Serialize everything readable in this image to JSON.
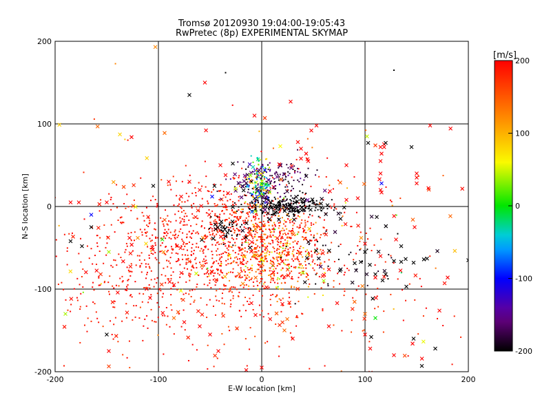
{
  "chart_data": {
    "type": "scatter",
    "title": "Tromsø 20120930 19:04:00-19:05:43",
    "subtitle": "RwPretec (8p) EXPERIMENTAL SKYMAP",
    "xlabel": "E-W location [km]",
    "ylabel": "N-S location [km]",
    "xlim": [
      -200,
      200
    ],
    "ylim": [
      -200,
      200
    ],
    "xticks": [
      -200,
      -100,
      0,
      100,
      200
    ],
    "yticks": [
      -200,
      -100,
      0,
      100,
      200
    ],
    "grid": true,
    "colorbar": {
      "label": "[m/s]",
      "min": -200,
      "max": 200,
      "ticks": [
        200,
        100,
        0,
        -100,
        -200
      ],
      "colormap": "rainbow (black - blue - cyan - green - yellow - red)"
    },
    "clusters": [
      {
        "x": -35,
        "y": -40,
        "sx": 55,
        "sy": 35,
        "v": 190,
        "vs": 12,
        "n": 950,
        "cross": 0.04
      },
      {
        "x": 10,
        "y": -55,
        "sx": 22,
        "sy": 28,
        "v": 150,
        "vs": 60,
        "n": 420,
        "cross": 0.05
      },
      {
        "x": -140,
        "y": -80,
        "sx": 45,
        "sy": 45,
        "v": 190,
        "vs": 10,
        "n": 220,
        "cross": 0.08
      },
      {
        "x": 0,
        "y": -110,
        "sx": 90,
        "sy": 45,
        "v": 185,
        "vs": 18,
        "n": 230,
        "cross": 0.1
      },
      {
        "x": 25,
        "y": 0,
        "sx": 22,
        "sy": 6,
        "v": -200,
        "vs": 5,
        "n": 240,
        "cross": 0.15
      },
      {
        "x": 10,
        "y": 28,
        "sx": 20,
        "sy": 14,
        "v": -175,
        "vs": 20,
        "n": 170,
        "cross": 0.2
      },
      {
        "x": -3,
        "y": 28,
        "sx": 6,
        "sy": 14,
        "v": -30,
        "vs": 90,
        "n": 120,
        "cross": 0.15
      },
      {
        "x": -30,
        "y": -28,
        "sx": 12,
        "sy": 8,
        "v": -200,
        "vs": 5,
        "n": 45,
        "cross": 0.4
      },
      {
        "x": 80,
        "y": -60,
        "sx": 35,
        "sy": 25,
        "v": -195,
        "vs": 10,
        "n": 60,
        "cross": 0.5
      },
      {
        "x": 0,
        "y": -40,
        "sx": 120,
        "sy": 90,
        "v": 150,
        "vs": 70,
        "n": 160,
        "cross": 0.45
      }
    ],
    "markers": [
      {
        "x": -70,
        "y": 135,
        "v": -200,
        "m": "x"
      },
      {
        "x": -55,
        "y": 150,
        "v": 200,
        "m": "x"
      },
      {
        "x": 28,
        "y": 127,
        "v": 200,
        "m": "x"
      },
      {
        "x": -7,
        "y": 110,
        "v": 200,
        "m": "x"
      },
      {
        "x": -126,
        "y": 84,
        "v": 200,
        "m": "x"
      },
      {
        "x": -94,
        "y": 89,
        "v": 140,
        "m": "x"
      },
      {
        "x": 163,
        "y": 98,
        "v": 200,
        "m": "x"
      },
      {
        "x": 128,
        "y": 165,
        "v": -200,
        "m": "."
      },
      {
        "x": -35,
        "y": 162,
        "v": -200,
        "m": "."
      },
      {
        "x": 103,
        "y": 77,
        "v": -200,
        "m": "x"
      },
      {
        "x": 120,
        "y": 77,
        "v": -200,
        "m": "x"
      },
      {
        "x": 145,
        "y": 72,
        "v": -200,
        "m": "x"
      },
      {
        "x": 110,
        "y": 74,
        "v": 170,
        "m": "x"
      },
      {
        "x": 115,
        "y": 72,
        "v": 200,
        "m": "x"
      },
      {
        "x": 116,
        "y": 64,
        "v": 200,
        "m": "x"
      },
      {
        "x": 115,
        "y": 55,
        "v": 200,
        "m": "x"
      },
      {
        "x": 115,
        "y": 40,
        "v": 200,
        "m": "x"
      },
      {
        "x": 114,
        "y": 33,
        "v": 200,
        "m": "x"
      },
      {
        "x": 82,
        "y": 50,
        "v": 200,
        "m": "x"
      },
      {
        "x": 115,
        "y": 20,
        "v": 200,
        "m": "x"
      },
      {
        "x": 116,
        "y": 17,
        "v": 200,
        "m": "x"
      },
      {
        "x": 116,
        "y": 28,
        "v": -100,
        "m": "x"
      },
      {
        "x": 76,
        "y": 29,
        "v": 150,
        "m": "x"
      },
      {
        "x": 82,
        "y": 8,
        "v": 200,
        "m": "x"
      },
      {
        "x": 93,
        "y": 10,
        "v": 200,
        "m": "x"
      },
      {
        "x": 150,
        "y": 35,
        "v": 200,
        "m": "x"
      },
      {
        "x": 150,
        "y": 28,
        "v": 200,
        "m": "x"
      },
      {
        "x": 150,
        "y": 40,
        "v": 200,
        "m": "x"
      },
      {
        "x": 148,
        "y": -25,
        "v": 200,
        "m": "x"
      },
      {
        "x": 180,
        "y": -86,
        "v": 200,
        "m": "x"
      },
      {
        "x": 147,
        "y": -68,
        "v": -200,
        "m": "x"
      },
      {
        "x": 157,
        "y": -64,
        "v": -200,
        "m": "x"
      },
      {
        "x": 135,
        "y": -67,
        "v": -200,
        "m": "x"
      },
      {
        "x": 128,
        "y": -66,
        "v": -200,
        "m": "x"
      },
      {
        "x": 160,
        "y": -63,
        "v": -200,
        "m": "x"
      },
      {
        "x": 120,
        "y": -82,
        "v": -200,
        "m": "x"
      },
      {
        "x": 110,
        "y": -82,
        "v": -200,
        "m": "x"
      },
      {
        "x": 110,
        "y": -86,
        "v": 200,
        "m": "x"
      },
      {
        "x": 140,
        "y": -97,
        "v": -200,
        "m": "x"
      },
      {
        "x": 200,
        "y": -65,
        "v": -200,
        "m": "x"
      },
      {
        "x": 106,
        "y": -158,
        "v": -200,
        "m": "x"
      },
      {
        "x": 147,
        "y": -160,
        "v": -200,
        "m": "x"
      },
      {
        "x": 146,
        "y": -166,
        "v": 200,
        "m": "x"
      },
      {
        "x": 168,
        "y": -172,
        "v": -200,
        "m": "x"
      },
      {
        "x": 105,
        "y": -172,
        "v": 200,
        "m": "x"
      },
      {
        "x": 128,
        "y": -180,
        "v": 200,
        "m": "x"
      },
      {
        "x": 155,
        "y": -193,
        "v": -200,
        "m": "x"
      },
      {
        "x": -150,
        "y": -155,
        "v": -200,
        "m": "x"
      },
      {
        "x": -148,
        "y": -175,
        "v": 200,
        "m": "x"
      },
      {
        "x": -190,
        "y": -130,
        "v": 40,
        "m": "x"
      },
      {
        "x": -148,
        "y": -55,
        "v": 40,
        "m": "x"
      },
      {
        "x": -174,
        "y": -48,
        "v": -200,
        "m": "x"
      },
      {
        "x": -185,
        "y": -42,
        "v": -200,
        "m": "x"
      },
      {
        "x": -165,
        "y": -10,
        "v": -100,
        "m": "x"
      },
      {
        "x": -165,
        "y": -25,
        "v": -200,
        "m": "x"
      },
      {
        "x": -185,
        "y": 5,
        "v": 200,
        "m": "x"
      },
      {
        "x": -177,
        "y": 5,
        "v": 200,
        "m": "x"
      },
      {
        "x": -150,
        "y": 5,
        "v": 200,
        "m": "x"
      },
      {
        "x": -120,
        "y": -38,
        "v": 120,
        "m": "x"
      },
      {
        "x": -95,
        "y": -55,
        "v": 120,
        "m": "x"
      },
      {
        "x": -112,
        "y": -45,
        "v": 80,
        "m": "x"
      },
      {
        "x": -128,
        "y": -38,
        "v": 200,
        "m": "x"
      },
      {
        "x": -60,
        "y": 20,
        "v": 200,
        "m": "x"
      },
      {
        "x": -70,
        "y": 30,
        "v": 200,
        "m": "x"
      },
      {
        "x": -90,
        "y": 30,
        "v": 200,
        "m": "x"
      },
      {
        "x": -105,
        "y": 25,
        "v": -200,
        "m": "x"
      },
      {
        "x": -78,
        "y": 12,
        "v": 200,
        "m": "x"
      },
      {
        "x": -48,
        "y": 12,
        "v": -100,
        "m": "x"
      },
      {
        "x": -35,
        "y": 38,
        "v": 200,
        "m": "x"
      },
      {
        "x": -40,
        "y": 50,
        "v": 200,
        "m": "x"
      },
      {
        "x": -28,
        "y": 52,
        "v": -200,
        "m": "x"
      },
      {
        "x": 17,
        "y": 51,
        "v": 200,
        "m": "x"
      },
      {
        "x": 18,
        "y": 73,
        "v": 60,
        "m": "x"
      },
      {
        "x": 38,
        "y": 70,
        "v": 200,
        "m": "x"
      },
      {
        "x": 43,
        "y": 64,
        "v": 200,
        "m": "x"
      },
      {
        "x": 35,
        "y": 78,
        "v": 200,
        "m": "x"
      },
      {
        "x": 45,
        "y": 55,
        "v": 200,
        "m": "x"
      },
      {
        "x": 48,
        "y": 92,
        "v": 200,
        "m": "x"
      },
      {
        "x": 53,
        "y": 98,
        "v": 200,
        "m": "x"
      },
      {
        "x": 115,
        "y": -60,
        "v": 200,
        "m": "x"
      },
      {
        "x": 135,
        "y": -48,
        "v": -200,
        "m": "x"
      },
      {
        "x": 130,
        "y": -40,
        "v": 200,
        "m": "x"
      },
      {
        "x": 100,
        "y": -45,
        "v": 200,
        "m": "x"
      },
      {
        "x": 60,
        "y": -90,
        "v": 40,
        "m": "x"
      },
      {
        "x": 40,
        "y": -80,
        "v": 40,
        "m": "x"
      },
      {
        "x": -50,
        "y": -155,
        "v": 200,
        "m": "x"
      },
      {
        "x": -75,
        "y": -140,
        "v": 200,
        "m": "x"
      },
      {
        "x": -85,
        "y": -135,
        "v": 140,
        "m": "x"
      },
      {
        "x": -60,
        "y": -145,
        "v": 200,
        "m": "x"
      },
      {
        "x": -42,
        "y": -175,
        "v": 200,
        "m": "x"
      },
      {
        "x": 22,
        "y": -150,
        "v": 140,
        "m": "x"
      },
      {
        "x": 30,
        "y": -160,
        "v": 200,
        "m": "x"
      },
      {
        "x": 65,
        "y": -145,
        "v": 200,
        "m": "x"
      },
      {
        "x": 100,
        "y": -130,
        "v": 140,
        "m": "x"
      },
      {
        "x": 100,
        "y": -155,
        "v": 200,
        "m": "x"
      },
      {
        "x": 110,
        "y": -135,
        "v": 0,
        "m": "x"
      },
      {
        "x": 73,
        "y": -117,
        "v": 200,
        "m": "x"
      },
      {
        "x": -85,
        "y": -95,
        "v": 200,
        "m": "x"
      },
      {
        "x": -10,
        "y": -117,
        "v": 200,
        "m": "x"
      },
      {
        "x": 20,
        "y": -118,
        "v": 200,
        "m": "x"
      },
      {
        "x": -15,
        "y": -198,
        "v": 200,
        "m": "x"
      },
      {
        "x": 0,
        "y": -195,
        "v": 200,
        "m": "x"
      },
      {
        "x": 38,
        "y": 58,
        "v": 200,
        "m": "x"
      },
      {
        "x": 100,
        "y": -55,
        "v": -200,
        "m": "x"
      }
    ]
  }
}
